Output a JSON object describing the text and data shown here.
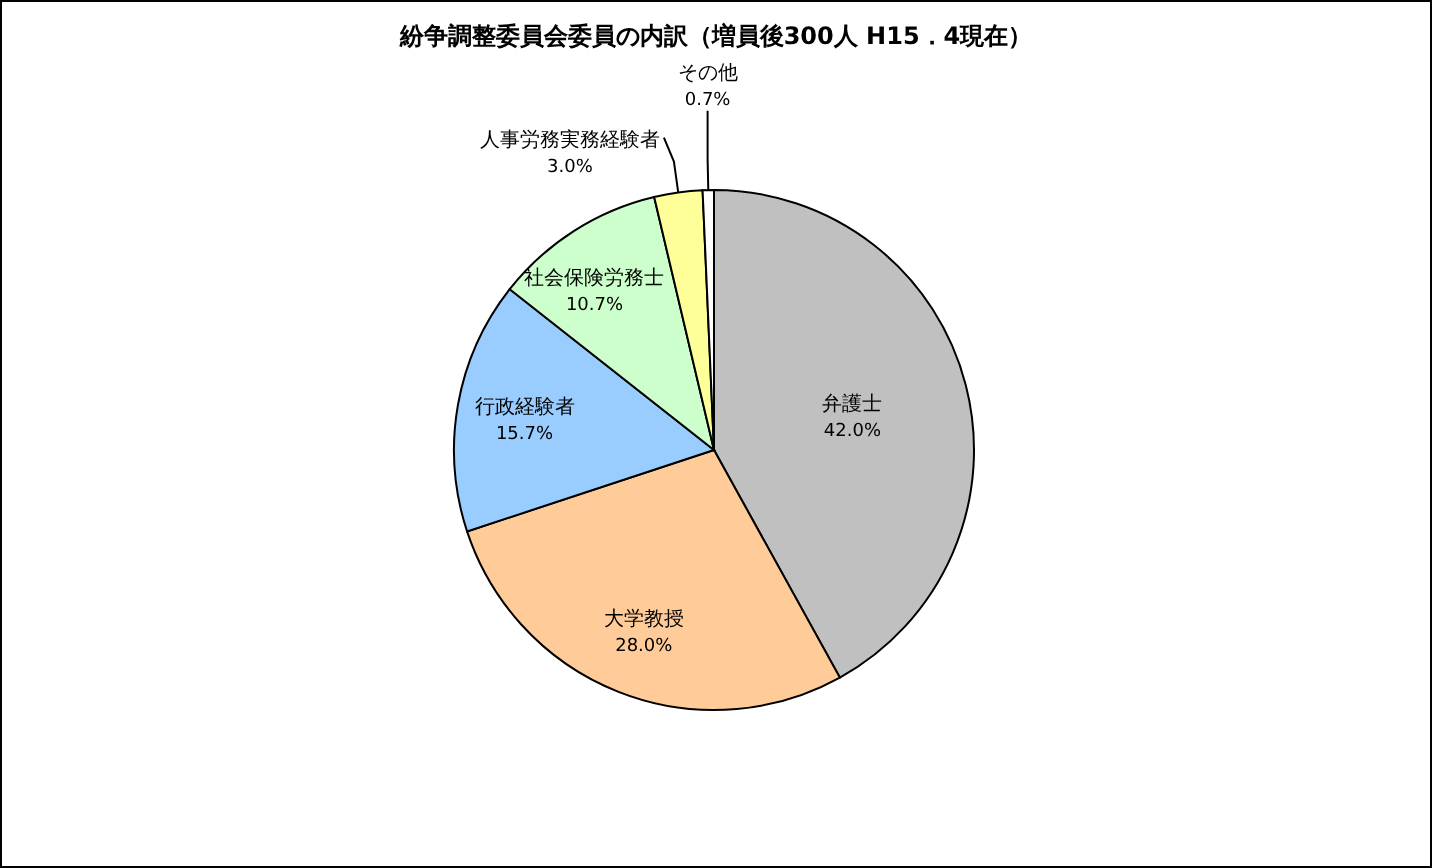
{
  "chart_data": {
    "type": "pie",
    "title": "紛争調整委員会委員の内訳（増員後300人 H15．4現在）",
    "categories": [
      "弁護士",
      "大学教授",
      "行政経験者",
      "社会保険労務士",
      "人事労務実務経験者",
      "その他"
    ],
    "values": [
      42.0,
      28.0,
      15.7,
      10.7,
      3.0,
      0.7
    ],
    "value_labels": [
      "42.0%",
      "28.0%",
      "15.7%",
      "10.7%",
      "3.0%",
      "0.7%"
    ],
    "colors": [
      "#c0c0c0",
      "#ffcc99",
      "#99ccff",
      "#ccffcc",
      "#ffff99",
      "#ffffff"
    ],
    "legend": false
  }
}
